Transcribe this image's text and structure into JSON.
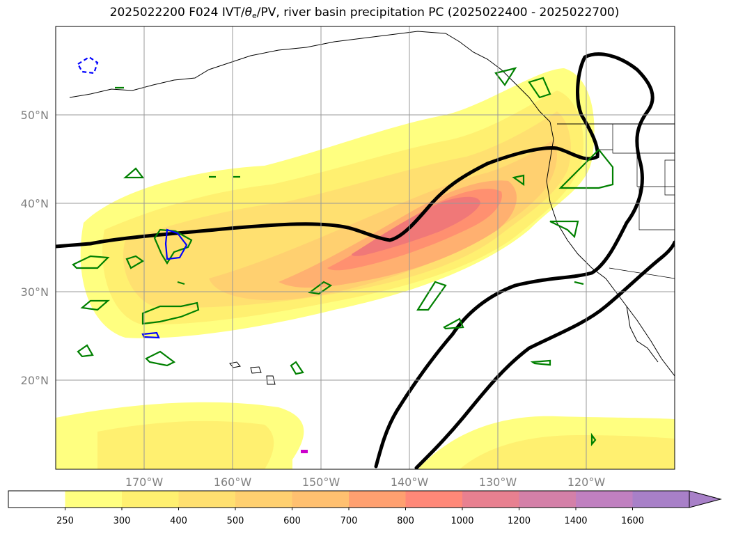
{
  "title": {
    "prefix": "2025022200 F024 IVT/",
    "theta": "θ",
    "sub": "e",
    "suffix": "/PV, river basin precipitation PC (2025022400 - 2025022700)"
  },
  "map": {
    "lon_labels": [
      "170°W",
      "160°W",
      "150°W",
      "140°W",
      "130°W",
      "120°W"
    ],
    "lat_labels": [
      "50°N",
      "40°N",
      "30°N",
      "20°N"
    ]
  },
  "colorbar": {
    "levels": [
      "250",
      "300",
      "400",
      "500",
      "600",
      "700",
      "800",
      "1000",
      "1200",
      "1400",
      "1600"
    ],
    "colors": [
      "#ffffff",
      "#ffff80",
      "#fff070",
      "#ffe070",
      "#ffd070",
      "#ffc070",
      "#ffa070",
      "#ff8878",
      "#e88090",
      "#d480a8",
      "#c080c0",
      "#a880c8"
    ],
    "extend": "max"
  },
  "ivt_colors": [
    "#ffff80",
    "#fff070",
    "#ffe070",
    "#ffd070",
    "#ffb070",
    "#ff9070",
    "#f07878"
  ],
  "contour_colors": {
    "theta_e": "#000000",
    "pv_positive": "#008000",
    "pv_negative": "#0000ff",
    "precip": "#cc00cc"
  }
}
